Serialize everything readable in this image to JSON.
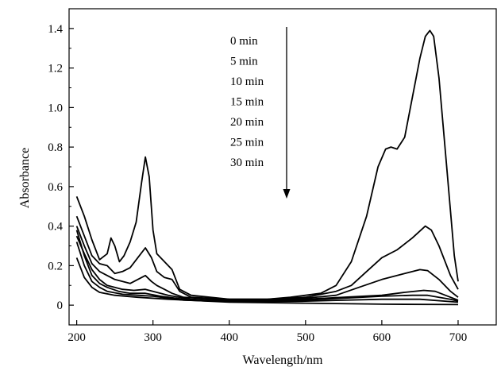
{
  "chart_data": {
    "type": "line",
    "title": "",
    "xlabel": "Wavelength/nm",
    "ylabel": "Absorbance",
    "xlim": [
      190,
      750
    ],
    "ylim": [
      -0.1,
      1.5
    ],
    "xticks": [
      200,
      300,
      400,
      500,
      600,
      700
    ],
    "yticks": [
      0,
      0.2,
      0.4,
      0.6,
      0.8,
      1.0,
      1.2,
      1.4
    ],
    "ytick_labels": [
      "0",
      "0.2",
      "0.4",
      "0.6",
      "0.8",
      "1.0",
      "1.2",
      "1.4"
    ],
    "legend": {
      "labels": [
        "0 min",
        "5 min",
        "10 min",
        "15 min",
        "20 min",
        "25 min",
        "30 min"
      ],
      "arrow": "downward",
      "placement": "top-center"
    },
    "series": [
      {
        "name": "0 min",
        "points": [
          [
            200,
            0.55
          ],
          [
            210,
            0.45
          ],
          [
            220,
            0.33
          ],
          [
            230,
            0.23
          ],
          [
            240,
            0.26
          ],
          [
            245,
            0.34
          ],
          [
            250,
            0.3
          ],
          [
            256,
            0.22
          ],
          [
            262,
            0.25
          ],
          [
            270,
            0.32
          ],
          [
            278,
            0.42
          ],
          [
            285,
            0.62
          ],
          [
            290,
            0.75
          ],
          [
            295,
            0.65
          ],
          [
            300,
            0.38
          ],
          [
            305,
            0.26
          ],
          [
            315,
            0.22
          ],
          [
            325,
            0.18
          ],
          [
            335,
            0.08
          ],
          [
            350,
            0.05
          ],
          [
            400,
            0.03
          ],
          [
            450,
            0.03
          ],
          [
            480,
            0.04
          ],
          [
            500,
            0.05
          ],
          [
            520,
            0.06
          ],
          [
            540,
            0.1
          ],
          [
            560,
            0.22
          ],
          [
            580,
            0.45
          ],
          [
            595,
            0.7
          ],
          [
            605,
            0.79
          ],
          [
            612,
            0.8
          ],
          [
            620,
            0.79
          ],
          [
            630,
            0.85
          ],
          [
            640,
            1.05
          ],
          [
            650,
            1.25
          ],
          [
            657,
            1.36
          ],
          [
            663,
            1.39
          ],
          [
            668,
            1.36
          ],
          [
            675,
            1.15
          ],
          [
            685,
            0.7
          ],
          [
            695,
            0.25
          ],
          [
            700,
            0.12
          ]
        ]
      },
      {
        "name": "5 min",
        "points": [
          [
            200,
            0.45
          ],
          [
            210,
            0.35
          ],
          [
            220,
            0.25
          ],
          [
            230,
            0.21
          ],
          [
            240,
            0.2
          ],
          [
            250,
            0.16
          ],
          [
            260,
            0.17
          ],
          [
            270,
            0.19
          ],
          [
            280,
            0.24
          ],
          [
            290,
            0.29
          ],
          [
            298,
            0.24
          ],
          [
            305,
            0.17
          ],
          [
            315,
            0.14
          ],
          [
            325,
            0.13
          ],
          [
            335,
            0.07
          ],
          [
            350,
            0.04
          ],
          [
            400,
            0.03
          ],
          [
            450,
            0.03
          ],
          [
            500,
            0.04
          ],
          [
            540,
            0.07
          ],
          [
            560,
            0.1
          ],
          [
            580,
            0.17
          ],
          [
            600,
            0.24
          ],
          [
            620,
            0.28
          ],
          [
            640,
            0.34
          ],
          [
            657,
            0.4
          ],
          [
            665,
            0.38
          ],
          [
            675,
            0.3
          ],
          [
            690,
            0.15
          ],
          [
            700,
            0.08
          ]
        ]
      },
      {
        "name": "10 min",
        "points": [
          [
            200,
            0.4
          ],
          [
            210,
            0.3
          ],
          [
            220,
            0.21
          ],
          [
            230,
            0.17
          ],
          [
            240,
            0.15
          ],
          [
            250,
            0.13
          ],
          [
            260,
            0.12
          ],
          [
            270,
            0.11
          ],
          [
            280,
            0.13
          ],
          [
            290,
            0.15
          ],
          [
            298,
            0.12
          ],
          [
            305,
            0.1
          ],
          [
            315,
            0.08
          ],
          [
            325,
            0.06
          ],
          [
            340,
            0.04
          ],
          [
            400,
            0.025
          ],
          [
            450,
            0.025
          ],
          [
            500,
            0.035
          ],
          [
            540,
            0.05
          ],
          [
            570,
            0.09
          ],
          [
            600,
            0.13
          ],
          [
            630,
            0.16
          ],
          [
            650,
            0.18
          ],
          [
            660,
            0.175
          ],
          [
            675,
            0.13
          ],
          [
            690,
            0.07
          ],
          [
            700,
            0.04
          ]
        ]
      },
      {
        "name": "15 min",
        "points": [
          [
            200,
            0.35
          ],
          [
            210,
            0.26
          ],
          [
            220,
            0.18
          ],
          [
            230,
            0.13
          ],
          [
            240,
            0.1
          ],
          [
            250,
            0.09
          ],
          [
            260,
            0.08
          ],
          [
            275,
            0.075
          ],
          [
            290,
            0.08
          ],
          [
            300,
            0.07
          ],
          [
            320,
            0.05
          ],
          [
            350,
            0.03
          ],
          [
            400,
            0.02
          ],
          [
            450,
            0.02
          ],
          [
            500,
            0.03
          ],
          [
            550,
            0.04
          ],
          [
            600,
            0.05
          ],
          [
            630,
            0.065
          ],
          [
            655,
            0.075
          ],
          [
            670,
            0.07
          ],
          [
            690,
            0.04
          ],
          [
            700,
            0.025
          ]
        ]
      },
      {
        "name": "20 min",
        "points": [
          [
            200,
            0.38
          ],
          [
            210,
            0.25
          ],
          [
            220,
            0.15
          ],
          [
            230,
            0.11
          ],
          [
            240,
            0.09
          ],
          [
            255,
            0.07
          ],
          [
            270,
            0.06
          ],
          [
            290,
            0.06
          ],
          [
            310,
            0.045
          ],
          [
            340,
            0.03
          ],
          [
            400,
            0.02
          ],
          [
            450,
            0.02
          ],
          [
            500,
            0.025
          ],
          [
            550,
            0.035
          ],
          [
            600,
            0.045
          ],
          [
            640,
            0.05
          ],
          [
            660,
            0.05
          ],
          [
            690,
            0.03
          ],
          [
            700,
            0.02
          ]
        ]
      },
      {
        "name": "25 min",
        "points": [
          [
            200,
            0.32
          ],
          [
            210,
            0.2
          ],
          [
            220,
            0.12
          ],
          [
            230,
            0.09
          ],
          [
            240,
            0.07
          ],
          [
            260,
            0.055
          ],
          [
            280,
            0.05
          ],
          [
            300,
            0.045
          ],
          [
            340,
            0.025
          ],
          [
            400,
            0.018
          ],
          [
            450,
            0.018
          ],
          [
            500,
            0.02
          ],
          [
            550,
            0.025
          ],
          [
            600,
            0.03
          ],
          [
            650,
            0.03
          ],
          [
            700,
            0.015
          ]
        ]
      },
      {
        "name": "30 min",
        "points": [
          [
            200,
            0.24
          ],
          [
            210,
            0.14
          ],
          [
            220,
            0.09
          ],
          [
            230,
            0.065
          ],
          [
            250,
            0.05
          ],
          [
            280,
            0.04
          ],
          [
            320,
            0.03
          ],
          [
            400,
            0.015
          ],
          [
            500,
            0.01
          ],
          [
            600,
            0.005
          ],
          [
            700,
            0.003
          ]
        ]
      }
    ]
  }
}
